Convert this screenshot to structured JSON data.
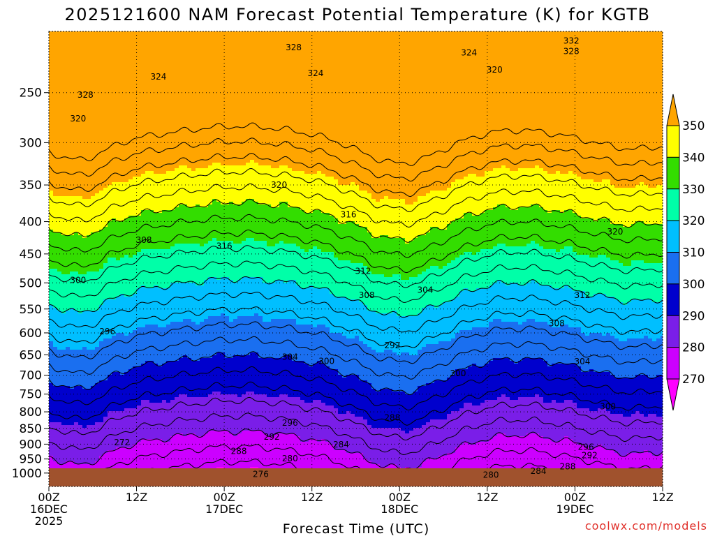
{
  "chart_data": {
    "type": "contour",
    "title": "2025121600 NAM Forecast Potential Temperature (K) for KGTB",
    "xlabel": "Forecast Time (UTC)",
    "ylabel": "",
    "credit": "coolwx.com/models",
    "y_axis": {
      "scale": "log-pressure",
      "range": [
        200,
        1050
      ],
      "ticks": [
        250,
        300,
        350,
        400,
        450,
        500,
        550,
        600,
        650,
        700,
        750,
        800,
        850,
        900,
        950,
        1000
      ]
    },
    "x_axis": {
      "range_hours": [
        0,
        84
      ],
      "ticks": [
        {
          "hour": 0,
          "lines": [
            "00Z",
            "16DEC",
            "2025"
          ]
        },
        {
          "hour": 12,
          "lines": [
            "12Z"
          ]
        },
        {
          "hour": 24,
          "lines": [
            "00Z",
            "17DEC"
          ]
        },
        {
          "hour": 36,
          "lines": [
            "12Z"
          ]
        },
        {
          "hour": 48,
          "lines": [
            "00Z",
            "18DEC"
          ]
        },
        {
          "hour": 60,
          "lines": [
            "12Z"
          ]
        },
        {
          "hour": 72,
          "lines": [
            "00Z",
            "19DEC"
          ]
        },
        {
          "hour": 84,
          "lines": [
            "12Z"
          ]
        }
      ]
    },
    "colorbar": {
      "levels": [
        270,
        280,
        290,
        300,
        310,
        320,
        330,
        340,
        350
      ],
      "colors": [
        "#ff00ff",
        "#cc00ff",
        "#7a1ee8",
        "#0000cd",
        "#1a6ff0",
        "#00bfff",
        "#00ffa8",
        "#33dd00",
        "#ffff00",
        "#ffa500"
      ]
    },
    "contour_interval_K": 4,
    "contour_labels": [
      {
        "text": "328",
        "hour": 33.5,
        "p": 212
      },
      {
        "text": "324",
        "hour": 36.5,
        "p": 233
      },
      {
        "text": "324",
        "hour": 15.0,
        "p": 236
      },
      {
        "text": "324",
        "hour": 57.5,
        "p": 216
      },
      {
        "text": "320",
        "hour": 61.0,
        "p": 230
      },
      {
        "text": "332",
        "hour": 71.5,
        "p": 207
      },
      {
        "text": "328",
        "hour": 71.5,
        "p": 215
      },
      {
        "text": "328",
        "hour": 5.0,
        "p": 252
      },
      {
        "text": "320",
        "hour": 4.0,
        "p": 275
      },
      {
        "text": "320",
        "hour": 31.5,
        "p": 350
      },
      {
        "text": "316",
        "hour": 41.0,
        "p": 390
      },
      {
        "text": "308",
        "hour": 13.0,
        "p": 428
      },
      {
        "text": "316",
        "hour": 24.0,
        "p": 437
      },
      {
        "text": "320",
        "hour": 77.5,
        "p": 415
      },
      {
        "text": "312",
        "hour": 43.0,
        "p": 479
      },
      {
        "text": "300",
        "hour": 4.0,
        "p": 495
      },
      {
        "text": "304",
        "hour": 51.5,
        "p": 513
      },
      {
        "text": "308",
        "hour": 43.5,
        "p": 523
      },
      {
        "text": "312",
        "hour": 73.0,
        "p": 523
      },
      {
        "text": "296",
        "hour": 8.0,
        "p": 597
      },
      {
        "text": "308",
        "hour": 69.5,
        "p": 580
      },
      {
        "text": "292",
        "hour": 47.0,
        "p": 628
      },
      {
        "text": "304",
        "hour": 33.0,
        "p": 655
      },
      {
        "text": "300",
        "hour": 38.0,
        "p": 665
      },
      {
        "text": "304",
        "hour": 73.0,
        "p": 666
      },
      {
        "text": "300",
        "hour": 56.0,
        "p": 695
      },
      {
        "text": "300",
        "hour": 76.5,
        "p": 785
      },
      {
        "text": "288",
        "hour": 47.0,
        "p": 817
      },
      {
        "text": "296",
        "hour": 33.0,
        "p": 833
      },
      {
        "text": "292",
        "hour": 30.5,
        "p": 876
      },
      {
        "text": "272",
        "hour": 10.0,
        "p": 895
      },
      {
        "text": "288",
        "hour": 26.0,
        "p": 923
      },
      {
        "text": "284",
        "hour": 40.0,
        "p": 901
      },
      {
        "text": "296",
        "hour": 73.5,
        "p": 910
      },
      {
        "text": "292",
        "hour": 74.0,
        "p": 938
      },
      {
        "text": "280",
        "hour": 33.0,
        "p": 948
      },
      {
        "text": "288",
        "hour": 71.0,
        "p": 977
      },
      {
        "text": "284",
        "hour": 67.0,
        "p": 993
      },
      {
        "text": "280",
        "hour": 60.5,
        "p": 1007
      },
      {
        "text": "276",
        "hour": 29.0,
        "p": 1004
      }
    ]
  }
}
